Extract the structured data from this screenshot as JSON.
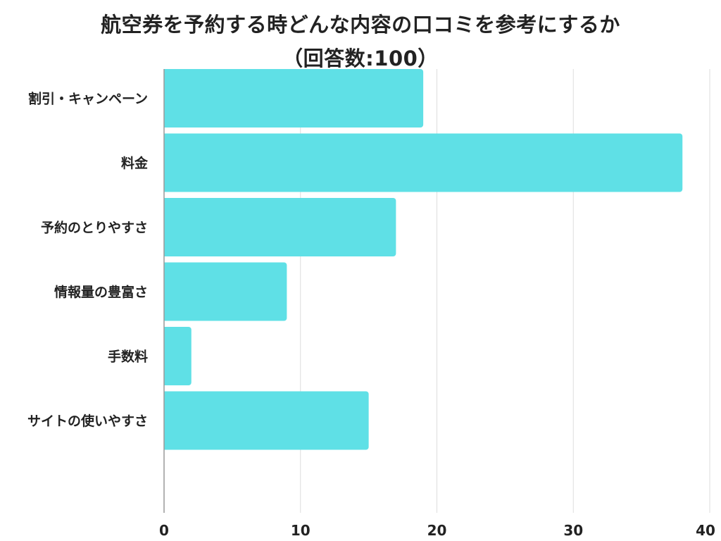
{
  "title": {
    "line1": "航空券を予約する時どんな内容の口コミを参考にするか",
    "line2": "（回答数:100）"
  },
  "chart_data": {
    "type": "bar",
    "orientation": "horizontal",
    "title": "航空券を予約する時どんな内容の口コミを参考にするか（回答数:100）",
    "categories": [
      "割引・キャンペーン",
      "料金",
      "予約のとりやすさ",
      "情報量の豊富さ",
      "手数料",
      "サイトの使いやすさ"
    ],
    "values": [
      19,
      38,
      17,
      9,
      2,
      15
    ],
    "xlim": [
      0,
      40
    ],
    "xticks": [
      0,
      10,
      20,
      30,
      40
    ],
    "grid": true,
    "legend": "none",
    "bar_color": "#5fe0e6",
    "text_color": "#222222",
    "grid_color": "#dddddd",
    "axis_color": "#999999"
  }
}
